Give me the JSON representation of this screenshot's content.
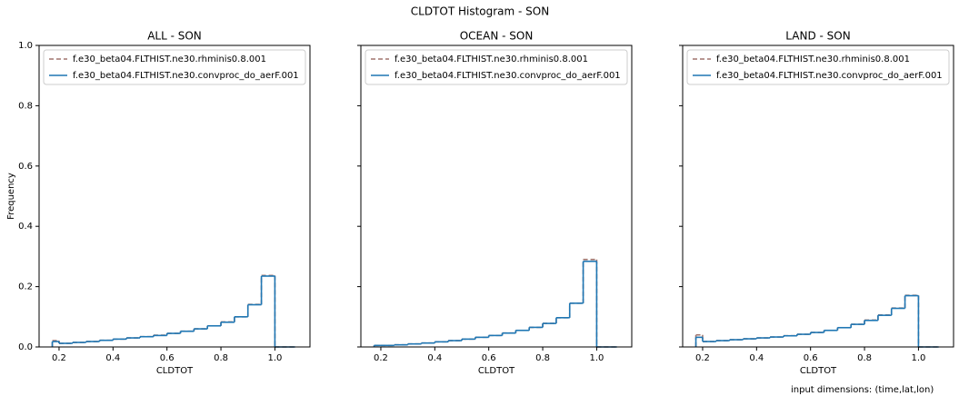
{
  "title": "CLDTOT Histogram - SON",
  "footer": "input dimensions: (time,lat,lon)",
  "chart_data": [
    {
      "type": "histogram",
      "title": "ALL - SON",
      "xlabel": "CLDTOT",
      "ylabel": "Frequency",
      "bins": [
        0.175,
        0.2,
        0.25,
        0.3,
        0.35,
        0.4,
        0.45,
        0.5,
        0.55,
        0.6,
        0.65,
        0.7,
        0.75,
        0.8,
        0.85,
        0.9,
        0.95,
        1.0,
        1.075
      ],
      "series": [
        {
          "name": "f.e30_beta04.FLTHIST.ne30.rhminis0.8.001",
          "color": "#a0756e",
          "dash": true,
          "values": [
            0.021,
            0.012,
            0.015,
            0.018,
            0.022,
            0.026,
            0.03,
            0.034,
            0.039,
            0.045,
            0.052,
            0.06,
            0.07,
            0.083,
            0.1,
            0.141,
            0.237,
            0
          ]
        },
        {
          "name": "f.e30_beta04.FLTHIST.ne30.convproc_do_aerF.001",
          "color": "#1f77b4",
          "dash": false,
          "values": [
            0.018,
            0.012,
            0.015,
            0.018,
            0.022,
            0.026,
            0.03,
            0.034,
            0.038,
            0.045,
            0.052,
            0.06,
            0.07,
            0.082,
            0.1,
            0.14,
            0.235,
            0
          ]
        }
      ],
      "xlim": [
        0.126,
        1.13
      ],
      "ylim": [
        0,
        1
      ],
      "xticks": [
        0.2,
        0.4,
        0.6,
        0.8,
        {
          "value": 1,
          "label": "1.0"
        }
      ],
      "yticks": [
        {
          "value": 0,
          "label": "0.0"
        },
        0.2,
        0.4,
        0.6,
        0.8,
        {
          "value": 1,
          "label": "1.0"
        }
      ],
      "show_ytick_labels": true,
      "legend": "upper left"
    },
    {
      "type": "histogram",
      "title": "OCEAN - SON",
      "xlabel": "CLDTOT",
      "bins": [
        0.175,
        0.2,
        0.25,
        0.3,
        0.35,
        0.4,
        0.45,
        0.5,
        0.55,
        0.6,
        0.65,
        0.7,
        0.75,
        0.8,
        0.85,
        0.9,
        0.95,
        1.0,
        1.075
      ],
      "series": [
        {
          "name": "f.e30_beta04.FLTHIST.ne30.rhminis0.8.001",
          "color": "#a0756e",
          "dash": true,
          "values": [
            0.005,
            0.005,
            0.007,
            0.01,
            0.013,
            0.017,
            0.021,
            0.026,
            0.032,
            0.038,
            0.046,
            0.055,
            0.065,
            0.078,
            0.097,
            0.145,
            0.29,
            0
          ]
        },
        {
          "name": "f.e30_beta04.FLTHIST.ne30.convproc_do_aerF.001",
          "color": "#1f77b4",
          "dash": false,
          "values": [
            0.005,
            0.005,
            0.007,
            0.01,
            0.013,
            0.017,
            0.021,
            0.026,
            0.032,
            0.038,
            0.046,
            0.055,
            0.065,
            0.078,
            0.097,
            0.145,
            0.284,
            0
          ]
        }
      ],
      "xlim": [
        0.126,
        1.13
      ],
      "ylim": [
        0,
        1
      ],
      "xticks": [
        0.2,
        0.4,
        0.6,
        0.8,
        {
          "value": 1,
          "label": "1.0"
        }
      ],
      "yticks": [
        0,
        0.2,
        0.4,
        0.6,
        0.8,
        1
      ],
      "show_ytick_labels": false,
      "legend": "upper left"
    },
    {
      "type": "histogram",
      "title": "LAND - SON",
      "xlabel": "CLDTOT",
      "bins": [
        0.175,
        0.2,
        0.25,
        0.3,
        0.35,
        0.4,
        0.45,
        0.5,
        0.55,
        0.6,
        0.65,
        0.7,
        0.75,
        0.8,
        0.85,
        0.9,
        0.95,
        1.0,
        1.075
      ],
      "series": [
        {
          "name": "f.e30_beta04.FLTHIST.ne30.rhminis0.8.001",
          "color": "#a0756e",
          "dash": true,
          "values": [
            0.04,
            0.018,
            0.021,
            0.024,
            0.027,
            0.03,
            0.033,
            0.037,
            0.042,
            0.048,
            0.055,
            0.064,
            0.075,
            0.089,
            0.106,
            0.129,
            0.171,
            0
          ]
        },
        {
          "name": "f.e30_beta04.FLTHIST.ne30.convproc_do_aerF.001",
          "color": "#1f77b4",
          "dash": false,
          "values": [
            0.032,
            0.018,
            0.021,
            0.024,
            0.027,
            0.03,
            0.033,
            0.037,
            0.042,
            0.048,
            0.055,
            0.064,
            0.075,
            0.088,
            0.105,
            0.128,
            0.17,
            0
          ]
        }
      ],
      "xlim": [
        0.126,
        1.13
      ],
      "ylim": [
        0,
        1
      ],
      "xticks": [
        0.2,
        0.4,
        0.6,
        0.8,
        {
          "value": 1,
          "label": "1.0"
        }
      ],
      "yticks": [
        0,
        0.2,
        0.4,
        0.6,
        0.8,
        1
      ],
      "show_ytick_labels": false,
      "legend": "upper left"
    }
  ]
}
